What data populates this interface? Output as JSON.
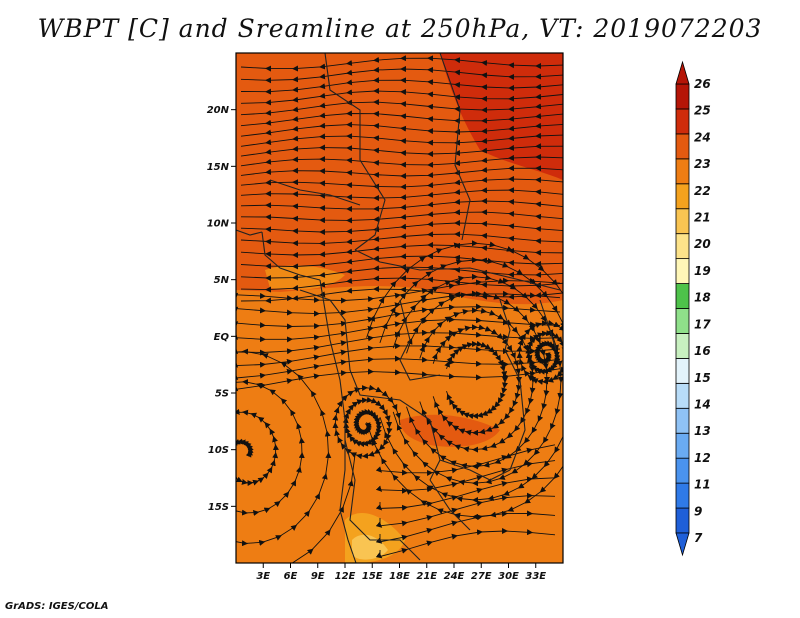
{
  "title": "WBPT [C] and Sreamline at 250hPa, VT: 2019072203",
  "credit": "GrADS: IGES/COLA",
  "map": {
    "lat_labels": [
      "20N",
      "15N",
      "10N",
      "5N",
      "EQ",
      "5S",
      "10S",
      "15S"
    ],
    "lon_labels": [
      "3E",
      "6E",
      "9E",
      "12E",
      "15E",
      "18E",
      "21E",
      "24E",
      "27E",
      "30E",
      "33E"
    ],
    "lat_range": [
      -20,
      25
    ],
    "lon_range": [
      0,
      36
    ],
    "field": "wet-bulb potential temperature",
    "overlay": "streamlines"
  },
  "colorbar": {
    "labels": [
      "7",
      "9",
      "11",
      "12",
      "13",
      "14",
      "15",
      "16",
      "17",
      "18",
      "19",
      "20",
      "21",
      "22",
      "23",
      "24",
      "25",
      "26"
    ],
    "colors": [
      "#1f5fd8",
      "#2f7ae8",
      "#4a93ee",
      "#6aabf2",
      "#8fc2f5",
      "#b8dcf8",
      "#e3f3fb",
      "#c8f0c0",
      "#8fe08a",
      "#4ec24a",
      "#fff7b8",
      "#fde38a",
      "#f9c452",
      "#f4a21e",
      "#ee7d13",
      "#e45a10",
      "#cf2c0b",
      "#b51507"
    ],
    "arrow_low": "#1f5fd8",
    "arrow_high": "#b51507"
  }
}
